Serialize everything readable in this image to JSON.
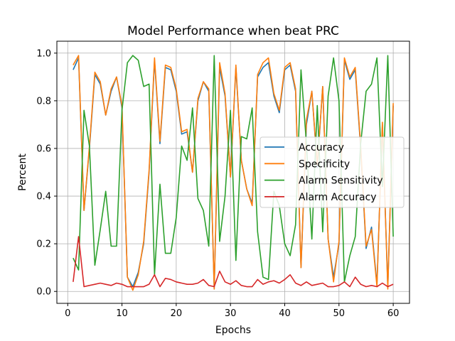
{
  "chart_data": {
    "type": "line",
    "title": "Model Performance when beat PRC",
    "xlabel": "Epochs",
    "ylabel": "Percent",
    "xlim": [
      -2,
      63
    ],
    "ylim": [
      -0.05,
      1.05
    ],
    "xticks": [
      0,
      10,
      20,
      30,
      40,
      50,
      60
    ],
    "yticks": [
      0.0,
      0.2,
      0.4,
      0.6,
      0.8,
      1.0
    ],
    "xtick_labels": [
      "0",
      "10",
      "20",
      "30",
      "40",
      "50",
      "60"
    ],
    "ytick_labels": [
      "0.0",
      "0.2",
      "0.4",
      "0.6",
      "0.8",
      "1.0"
    ],
    "grid": true,
    "legend_position": "center-right",
    "x": [
      1,
      2,
      3,
      4,
      5,
      6,
      7,
      8,
      9,
      10,
      11,
      12,
      13,
      14,
      15,
      16,
      17,
      18,
      19,
      20,
      21,
      22,
      23,
      24,
      25,
      26,
      27,
      28,
      29,
      30,
      31,
      32,
      33,
      34,
      35,
      36,
      37,
      38,
      39,
      40,
      41,
      42,
      43,
      44,
      45,
      46,
      47,
      48,
      49,
      50,
      51,
      52,
      53,
      54,
      55,
      56,
      57,
      58,
      59,
      60
    ],
    "series": [
      {
        "name": "Accuracy",
        "color": "#1f77b4",
        "values": [
          0.93,
          0.98,
          0.34,
          0.6,
          0.91,
          0.87,
          0.74,
          0.84,
          0.9,
          0.77,
          0.06,
          0.02,
          0.08,
          0.2,
          0.5,
          0.97,
          0.62,
          0.94,
          0.93,
          0.84,
          0.66,
          0.67,
          0.5,
          0.8,
          0.88,
          0.84,
          0.01,
          0.94,
          0.82,
          0.48,
          0.94,
          0.55,
          0.43,
          0.37,
          0.9,
          0.94,
          0.96,
          0.82,
          0.75,
          0.93,
          0.95,
          0.84,
          0.1,
          0.7,
          0.84,
          0.52,
          0.86,
          0.22,
          0.06,
          0.2,
          0.97,
          0.89,
          0.93,
          0.6,
          0.18,
          0.27,
          0.03,
          0.7,
          0.02,
          0.78
        ]
      },
      {
        "name": "Specificity",
        "color": "#ff7f0e",
        "values": [
          0.95,
          0.99,
          0.34,
          0.61,
          0.92,
          0.88,
          0.74,
          0.85,
          0.9,
          0.78,
          0.06,
          0.005,
          0.07,
          0.21,
          0.51,
          0.98,
          0.63,
          0.95,
          0.94,
          0.85,
          0.67,
          0.68,
          0.5,
          0.81,
          0.88,
          0.85,
          0.01,
          0.96,
          0.83,
          0.48,
          0.95,
          0.55,
          0.43,
          0.36,
          0.91,
          0.96,
          0.98,
          0.83,
          0.76,
          0.94,
          0.96,
          0.85,
          0.1,
          0.72,
          0.84,
          0.53,
          0.86,
          0.22,
          0.04,
          0.21,
          0.98,
          0.9,
          0.94,
          0.61,
          0.19,
          0.26,
          0.02,
          0.71,
          0.01,
          0.79
        ]
      },
      {
        "name": "Alarm Sensitivity",
        "color": "#2ca02c",
        "values": [
          0.14,
          0.09,
          0.76,
          0.61,
          0.11,
          0.26,
          0.42,
          0.19,
          0.19,
          0.76,
          0.96,
          0.99,
          0.97,
          0.86,
          0.87,
          0.07,
          0.45,
          0.16,
          0.16,
          0.31,
          0.61,
          0.55,
          0.77,
          0.39,
          0.34,
          0.19,
          0.99,
          0.21,
          0.4,
          0.76,
          0.13,
          0.65,
          0.64,
          0.77,
          0.25,
          0.06,
          0.05,
          0.42,
          0.36,
          0.2,
          0.15,
          0.28,
          0.93,
          0.62,
          0.22,
          0.78,
          0.25,
          0.82,
          0.98,
          0.8,
          0.04,
          0.15,
          0.23,
          0.62,
          0.84,
          0.87,
          0.98,
          0.44,
          0.99,
          0.23
        ]
      },
      {
        "name": "Alarm Accuracy",
        "color": "#d62728",
        "values": [
          0.04,
          0.23,
          0.02,
          0.025,
          0.03,
          0.035,
          0.03,
          0.025,
          0.035,
          0.03,
          0.02,
          0.02,
          0.02,
          0.02,
          0.03,
          0.07,
          0.02,
          0.055,
          0.05,
          0.04,
          0.035,
          0.03,
          0.03,
          0.035,
          0.05,
          0.025,
          0.02,
          0.085,
          0.04,
          0.03,
          0.045,
          0.025,
          0.02,
          0.02,
          0.05,
          0.03,
          0.04,
          0.045,
          0.035,
          0.05,
          0.07,
          0.035,
          0.025,
          0.04,
          0.025,
          0.03,
          0.035,
          0.02,
          0.02,
          0.025,
          0.04,
          0.02,
          0.06,
          0.03,
          0.02,
          0.025,
          0.02,
          0.035,
          0.02,
          0.03
        ]
      }
    ]
  }
}
